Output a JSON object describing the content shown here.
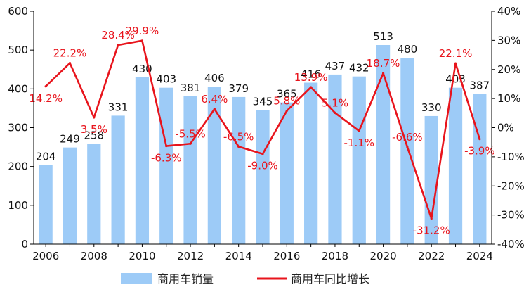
{
  "chart_data": {
    "type": "bar",
    "categories": [
      "2006",
      "2007",
      "2008",
      "2009",
      "2010",
      "2011",
      "2012",
      "2013",
      "2014",
      "2015",
      "2016",
      "2017",
      "2018",
      "2019",
      "2020",
      "2021",
      "2022",
      "2023",
      "2024"
    ],
    "x_tick_labels": [
      "2006",
      "2008",
      "2010",
      "2012",
      "2014",
      "2016",
      "2018",
      "2020",
      "2022",
      "2024"
    ],
    "series": [
      {
        "name": "商用车销量",
        "kind": "bar",
        "axis": "left",
        "color": "#9DCBF7",
        "values": [
          204,
          249,
          258,
          331,
          430,
          403,
          381,
          406,
          379,
          345,
          365,
          416,
          437,
          432,
          513,
          480,
          330,
          403,
          387
        ],
        "labels": [
          "204",
          "249",
          "258",
          "331",
          "430",
          "403",
          "381",
          "406",
          "379",
          "345",
          "365",
          "416",
          "437",
          "432",
          "513",
          "480",
          "330",
          "403",
          "387"
        ]
      },
      {
        "name": "商用车同比增长",
        "kind": "line",
        "axis": "right",
        "color": "#E8141C",
        "values": [
          14.2,
          22.2,
          3.5,
          28.4,
          29.9,
          -6.3,
          -5.5,
          6.4,
          -6.5,
          -9.0,
          5.8,
          13.9,
          5.1,
          -1.1,
          18.7,
          -6.6,
          -31.2,
          22.1,
          -3.9
        ],
        "labels": [
          "14.2%",
          "22.2%",
          "3.5%",
          "28.4%",
          "29.9%",
          "-6.3%",
          "-5.5%",
          "6.4%",
          "-6.5%",
          "-9.0%",
          "5.8%",
          "13.9%",
          "5.1%",
          "-1.1%",
          "18.7%",
          "-6.6%",
          "-31.2%",
          "22.1%",
          "-3.9%"
        ]
      }
    ],
    "y_left": {
      "ylim": [
        0,
        600
      ],
      "ticks": [
        "0",
        "100",
        "200",
        "300",
        "400",
        "500",
        "600"
      ]
    },
    "y_right": {
      "ylim": [
        -40,
        40
      ],
      "ticks": [
        "-40%",
        "-30%",
        "-20%",
        "-10%",
        "0%",
        "10%",
        "20%",
        "30%",
        "40%"
      ]
    },
    "grid": false,
    "legend_position": "bottom"
  }
}
